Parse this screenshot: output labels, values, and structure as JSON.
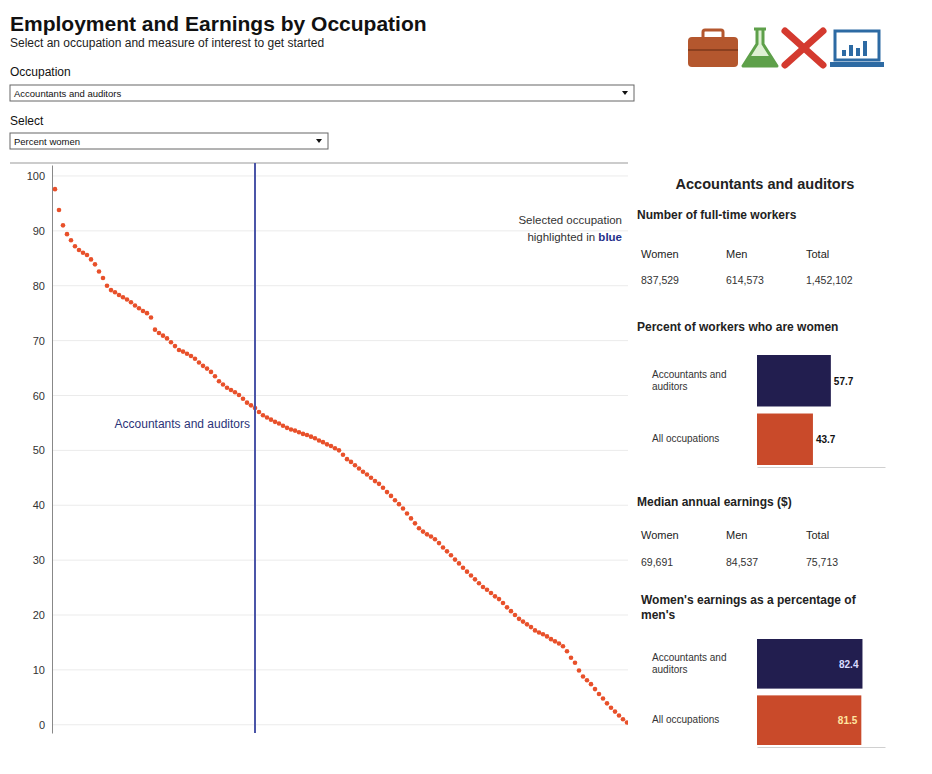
{
  "header": {
    "title": "Employment and Earnings by Occupation",
    "subtitle": "Select an occupation and measure of interest to get started"
  },
  "controls": [
    {
      "label": "Occupation",
      "value": "Accountants and auditors"
    },
    {
      "label": "Select",
      "value": "Percent women"
    }
  ],
  "panel": {
    "title": "Accountants and auditors",
    "tables": [
      {
        "title": "Number of full-time workers",
        "columns": [
          "Women",
          "Men",
          "Total"
        ],
        "rows": [
          [
            "837,529",
            "614,573",
            "1,452,102"
          ]
        ]
      },
      {
        "title": "Median annual earnings ($)",
        "columns": [
          "Women",
          "Men",
          "Total"
        ],
        "rows": [
          [
            "69,691",
            "84,537",
            "75,713"
          ]
        ]
      }
    ]
  },
  "chart_data": [
    {
      "type": "scatter",
      "categories": [
        null,
        null,
        null,
        null,
        null,
        null,
        null,
        null,
        null,
        null,
        null,
        null,
        null,
        null,
        null,
        null,
        null,
        null,
        null,
        null,
        null,
        null,
        null,
        null,
        null,
        null,
        null,
        null,
        null,
        null,
        null,
        null,
        null,
        null,
        null,
        null,
        null,
        null,
        null,
        null,
        null,
        null,
        null,
        null,
        null,
        null,
        null,
        null,
        null,
        null,
        null,
        null,
        null,
        null,
        null,
        null,
        null,
        null,
        null,
        null,
        null,
        null,
        null,
        null,
        null,
        null,
        null,
        null,
        null,
        null,
        null,
        null,
        null,
        null,
        null,
        null,
        null,
        null,
        null,
        null,
        null,
        null,
        null,
        null,
        null,
        null,
        null,
        null,
        null,
        null,
        null,
        null,
        null,
        null,
        null,
        null,
        null,
        null,
        null,
        null,
        null,
        null,
        null,
        null,
        null,
        null,
        null,
        null,
        null,
        null,
        null,
        null,
        null,
        null,
        null,
        null,
        null,
        null,
        null,
        null,
        null,
        null,
        null,
        null,
        null,
        null,
        null,
        null,
        null,
        null,
        null,
        null,
        null,
        null,
        null,
        null,
        null,
        null,
        null,
        null,
        null,
        null,
        null,
        null
      ],
      "values": [
        97.6,
        93.8,
        91.0,
        89.4,
        88.3,
        87.2,
        86.5,
        86.0,
        85.6,
        84.8,
        83.9,
        82.6,
        81.4,
        80.0,
        79.2,
        78.8,
        78.3,
        77.9,
        77.5,
        77.0,
        76.4,
        75.9,
        75.4,
        75.0,
        74.2,
        72.0,
        71.4,
        70.9,
        70.4,
        69.7,
        69.0,
        68.3,
        68.0,
        67.6,
        67.2,
        66.7,
        66.0,
        65.4,
        64.9,
        64.3,
        63.5,
        62.6,
        62.0,
        61.4,
        61.0,
        60.6,
        60.1,
        59.4,
        58.7,
        58.2,
        57.7,
        57.0,
        56.4,
        56.0,
        55.6,
        55.2,
        54.9,
        54.5,
        54.1,
        53.8,
        53.6,
        53.3,
        53.0,
        52.8,
        52.5,
        52.2,
        51.8,
        51.5,
        51.1,
        50.8,
        50.4,
        50.0,
        49.2,
        48.4,
        47.9,
        47.3,
        46.7,
        46.1,
        45.6,
        45.0,
        44.4,
        43.9,
        43.2,
        42.4,
        41.7,
        40.9,
        40.2,
        39.4,
        38.5,
        37.6,
        36.7,
        35.8,
        35.2,
        34.7,
        34.3,
        33.8,
        33.1,
        32.3,
        31.6,
        30.9,
        30.1,
        29.4,
        28.6,
        27.9,
        27.2,
        26.5,
        25.8,
        25.1,
        24.6,
        24.0,
        23.4,
        22.9,
        22.2,
        21.4,
        20.7,
        20.0,
        19.3,
        18.8,
        18.3,
        17.8,
        17.2,
        16.8,
        16.5,
        16.1,
        15.6,
        15.2,
        14.8,
        14.3,
        13.4,
        12.2,
        11.3,
        9.9,
        8.8,
        8.1,
        7.4,
        6.5,
        5.6,
        4.8,
        3.9,
        3.1,
        2.4,
        1.7,
        1.0,
        0.4
      ],
      "color": "#e8502a",
      "marker": "circle",
      "ylim": [
        -1.5,
        102
      ],
      "yticks": [
        0,
        10,
        20,
        30,
        40,
        50,
        60,
        70,
        80,
        90,
        100
      ],
      "grid": true,
      "tick_labels": "y",
      "annotations": [
        {
          "text": "Accountants and auditors",
          "x": 50,
          "y": 57.7
        },
        {
          "text": [
            "Selected occupation",
            "highlighted in",
            "blue"
          ]
        }
      ]
    },
    {
      "type": "bar",
      "orientation": "horizontal",
      "title": "Percent of workers who are women",
      "categories": [
        "Accountants and auditors",
        "All occupations"
      ],
      "values": [
        57.7,
        43.7
      ],
      "colors": [
        "#221e4f",
        "#c94a2a"
      ],
      "xlim": [
        0,
        100
      ],
      "data_labels": true,
      "tick_labels": "y"
    },
    {
      "type": "bar",
      "orientation": "horizontal",
      "title": "Women's earnings as a percentage of men's",
      "categories": [
        "Accountants and auditors",
        "All occupations"
      ],
      "values": [
        82.4,
        81.5
      ],
      "colors": [
        "#221e4f",
        "#c94a2a"
      ],
      "xlim": [
        0,
        100
      ],
      "data_labels": true,
      "tick_labels": "y"
    }
  ]
}
